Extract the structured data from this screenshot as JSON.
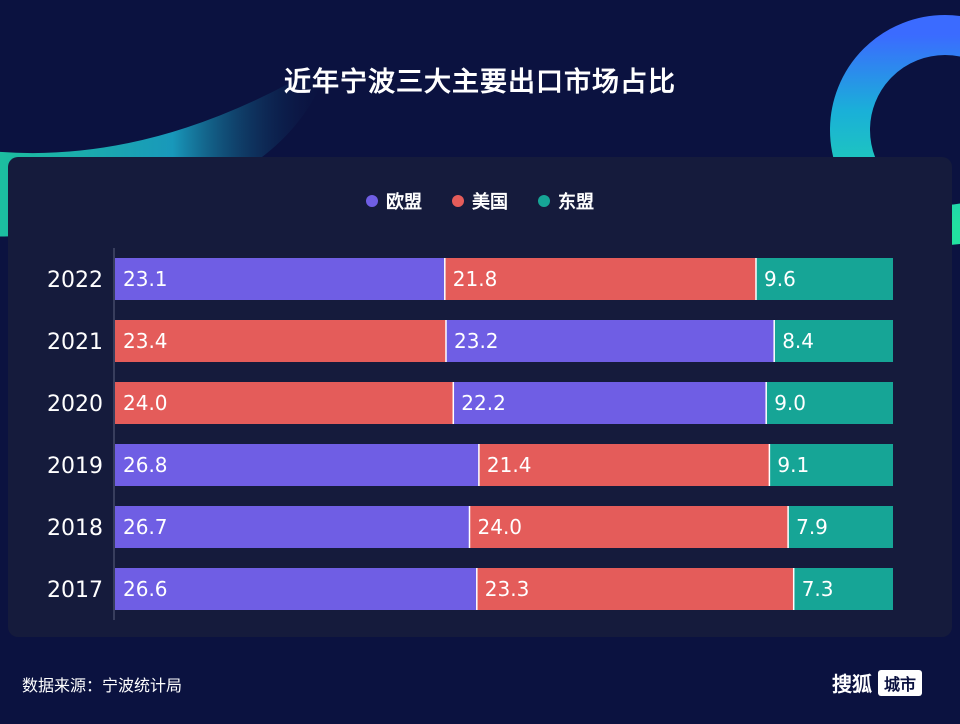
{
  "title": "近年宁波三大主要出口市场占比",
  "source": "数据来源：宁波统计局",
  "logo": {
    "text": "搜狐",
    "badge": "城市"
  },
  "colors": {
    "eu": "#6f5ee4",
    "us": "#e45c5a",
    "asean": "#16a596"
  },
  "chart_data": {
    "type": "bar",
    "orientation": "horizontal",
    "stacked": true,
    "legend": [
      {
        "key": "eu",
        "label": "欧盟"
      },
      {
        "key": "us",
        "label": "美国"
      },
      {
        "key": "asean",
        "label": "东盟"
      }
    ],
    "legend_position": "top-center",
    "categories": [
      "2022",
      "2021",
      "2020",
      "2019",
      "2018",
      "2017"
    ],
    "rows": [
      {
        "year": "2022",
        "segments": [
          {
            "key": "eu",
            "value": 23.1
          },
          {
            "key": "us",
            "value": 21.8
          },
          {
            "key": "asean",
            "value": 9.6
          }
        ]
      },
      {
        "year": "2021",
        "segments": [
          {
            "key": "us",
            "value": 23.4
          },
          {
            "key": "eu",
            "value": 23.2
          },
          {
            "key": "asean",
            "value": 8.4
          }
        ]
      },
      {
        "year": "2020",
        "segments": [
          {
            "key": "us",
            "value": 24.0
          },
          {
            "key": "eu",
            "value": 22.2
          },
          {
            "key": "asean",
            "value": 9.0
          }
        ]
      },
      {
        "year": "2019",
        "segments": [
          {
            "key": "eu",
            "value": 26.8
          },
          {
            "key": "us",
            "value": 21.4
          },
          {
            "key": "asean",
            "value": 9.1
          }
        ]
      },
      {
        "year": "2018",
        "segments": [
          {
            "key": "eu",
            "value": 26.7
          },
          {
            "key": "us",
            "value": 24.0
          },
          {
            "key": "asean",
            "value": 7.9
          }
        ]
      },
      {
        "year": "2017",
        "segments": [
          {
            "key": "eu",
            "value": 26.6
          },
          {
            "key": "us",
            "value": 23.3
          },
          {
            "key": "asean",
            "value": 7.3
          }
        ]
      }
    ],
    "grid": false
  }
}
